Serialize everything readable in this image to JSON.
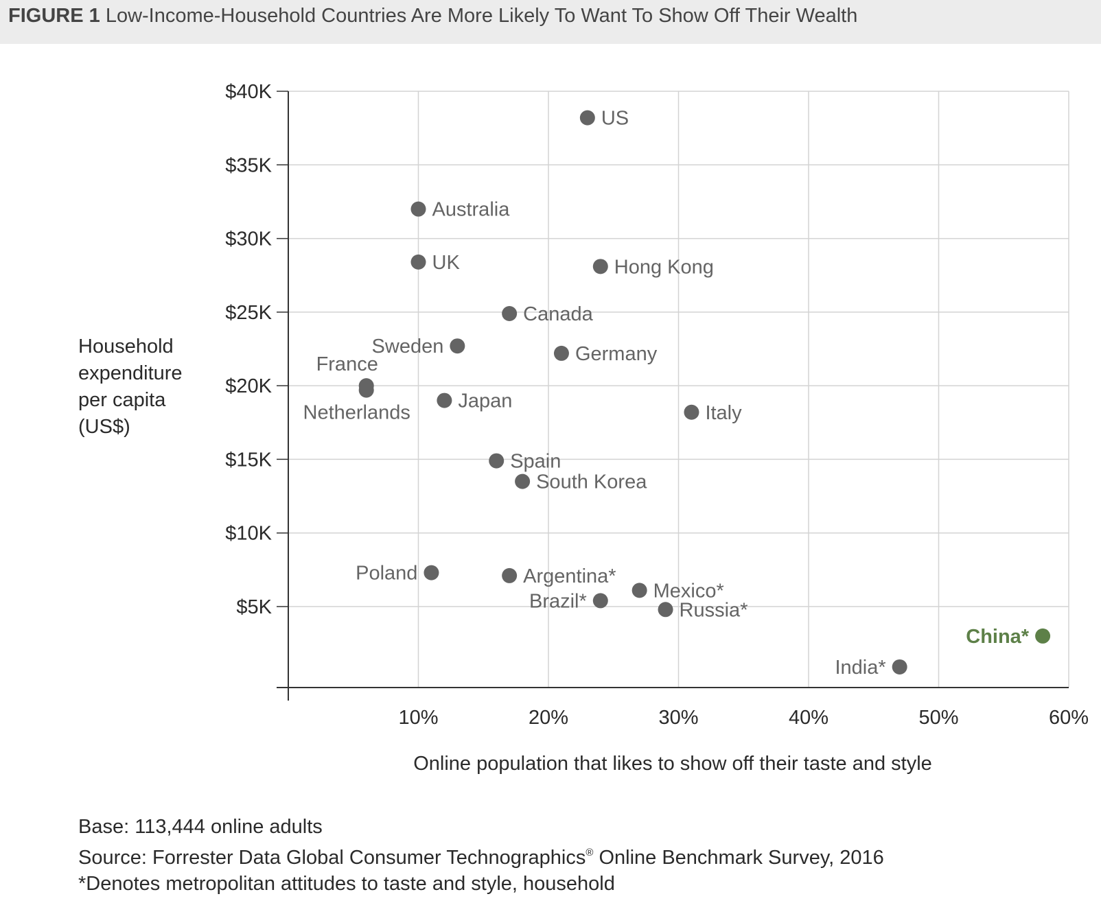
{
  "header": {
    "figure_label": "FIGURE 1",
    "title": "Low-Income-Household Countries Are More Likely To Want To Show Off Their Wealth"
  },
  "footer": {
    "base": "Base: 113,444 online adults",
    "source_before": "Source: Forrester Data Global Consumer Technographics",
    "source_mark": "®",
    "source_after": " Online Benchmark Survey, 2016",
    "note": "*Denotes metropolitan attitudes to taste and style, household"
  },
  "chart_data": {
    "type": "scatter",
    "xlabel": "Online population that likes to show off their taste and style",
    "ylabel": [
      "Household",
      "expenditure",
      "per capita",
      "(US$)"
    ],
    "xlim": [
      0,
      60
    ],
    "ylim": [
      -500,
      40000
    ],
    "x_ticks": [
      10,
      20,
      30,
      40,
      50,
      60
    ],
    "x_tick_labels": [
      "10%",
      "20%",
      "30%",
      "40%",
      "50%",
      "60%"
    ],
    "y_ticks": [
      5000,
      10000,
      15000,
      20000,
      25000,
      30000,
      35000,
      40000
    ],
    "y_tick_labels": [
      "$5K",
      "$10K",
      "$15K",
      "$20K",
      "$25K",
      "$30K",
      "$35K",
      "$40K"
    ],
    "grid": true,
    "colors": {
      "point": "#646464",
      "highlight": "#5d8048",
      "grid": "#d3d3d3",
      "axis": "#333333"
    },
    "points": [
      {
        "label": "US",
        "x": 23,
        "y": 38200,
        "side": "right"
      },
      {
        "label": "Australia",
        "x": 10,
        "y": 32000,
        "side": "right"
      },
      {
        "label": "UK",
        "x": 10,
        "y": 28400,
        "side": "right"
      },
      {
        "label": "Hong Kong",
        "x": 24,
        "y": 28100,
        "side": "right"
      },
      {
        "label": "Canada",
        "x": 17,
        "y": 24900,
        "side": "right"
      },
      {
        "label": "Sweden",
        "x": 13,
        "y": 22700,
        "side": "left"
      },
      {
        "label": "Germany",
        "x": 21,
        "y": 22200,
        "side": "right"
      },
      {
        "label": "France",
        "x": 6,
        "y": 20000,
        "side": "above"
      },
      {
        "label": "Netherlands",
        "x": 6,
        "y": 19700,
        "side": "below"
      },
      {
        "label": "Japan",
        "x": 12,
        "y": 19000,
        "side": "right"
      },
      {
        "label": "Italy",
        "x": 31,
        "y": 18200,
        "side": "right"
      },
      {
        "label": "Spain",
        "x": 16,
        "y": 14900,
        "side": "right"
      },
      {
        "label": "South Korea",
        "x": 18,
        "y": 13500,
        "side": "right"
      },
      {
        "label": "Poland",
        "x": 11,
        "y": 7300,
        "side": "left"
      },
      {
        "label": "Argentina*",
        "x": 17,
        "y": 7100,
        "side": "right"
      },
      {
        "label": "Mexico*",
        "x": 27,
        "y": 6100,
        "side": "right"
      },
      {
        "label": "Brazil*",
        "x": 24,
        "y": 5400,
        "side": "left"
      },
      {
        "label": "Russia*",
        "x": 29,
        "y": 4800,
        "side": "right"
      },
      {
        "label": "China*",
        "x": 58,
        "y": 3000,
        "side": "left",
        "highlight": true
      },
      {
        "label": "India*",
        "x": 47,
        "y": 900,
        "side": "left"
      }
    ]
  }
}
